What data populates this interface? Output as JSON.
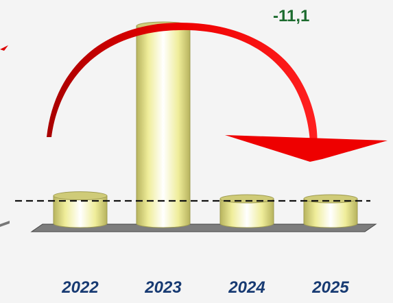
{
  "chart_data": {
    "type": "bar",
    "title": "",
    "xlabel": "",
    "ylabel": "",
    "categories": [
      "2022",
      "2023",
      "2024",
      "2025"
    ],
    "values": [
      14,
      100,
      12.5,
      12.5
    ],
    "annotation": "-11,1",
    "reference_line": "dashed, at 2024 level",
    "grid": false,
    "legend": "none"
  },
  "colors": {
    "bar_light": "#fffef2",
    "bar_mid": "#f2f0a0",
    "bar_dark": "#b3b05c",
    "arrow": "#dd0000",
    "annotation": "#1c6b2e",
    "ticks": "#173a72"
  }
}
